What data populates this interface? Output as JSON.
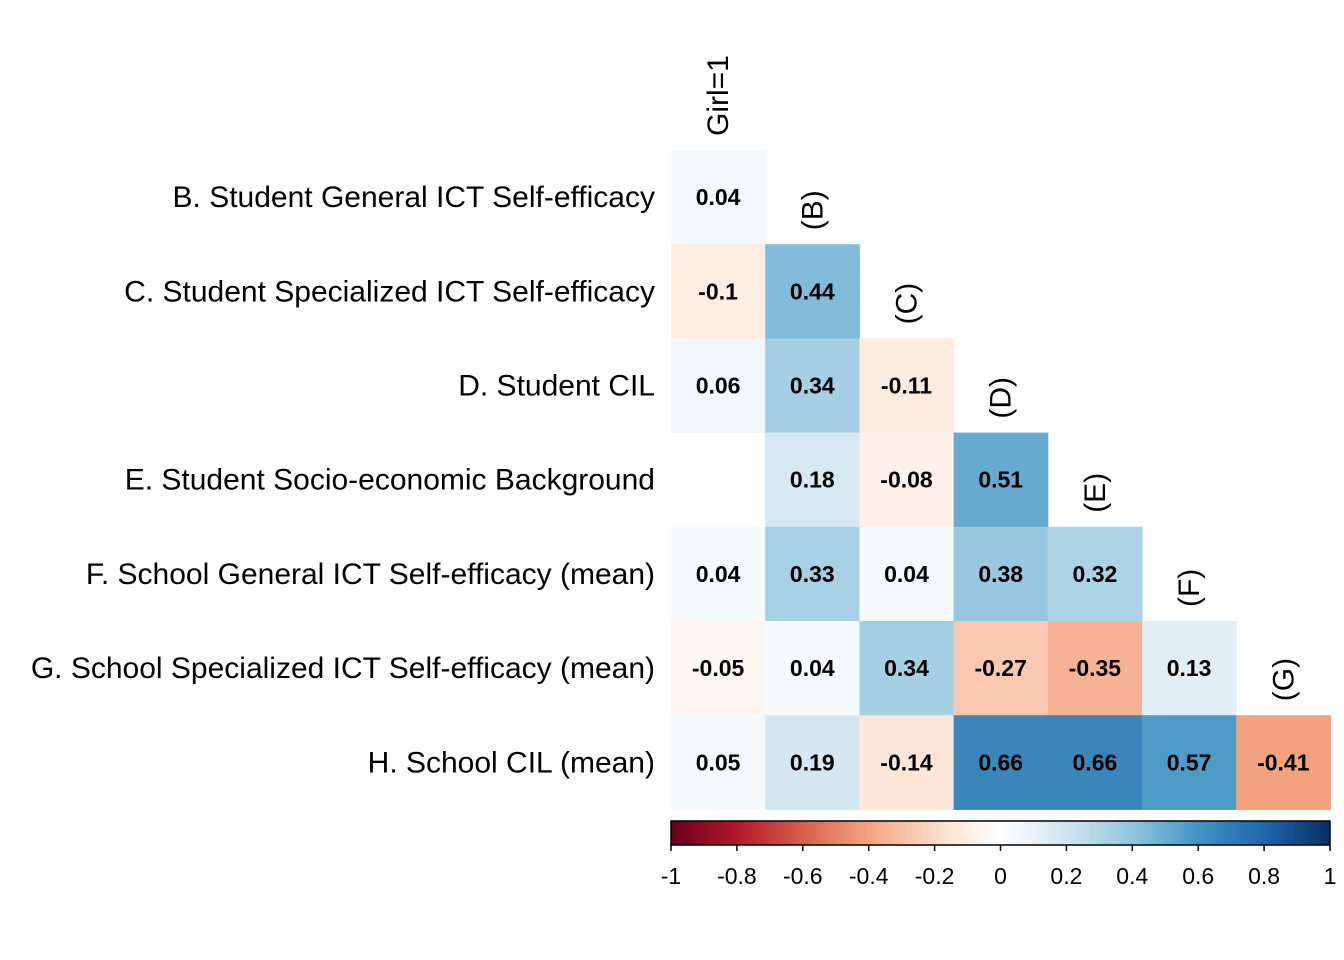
{
  "chart_data": {
    "type": "heatmap",
    "layout": "lower-triangle correlation matrix",
    "row_labels": [
      "B. Student General ICT Self-efficacy",
      "C. Student Specialized ICT Self-efficacy",
      "D. Student CIL",
      "E. Student Socio-economic Background",
      "F. School General ICT Self-efficacy (mean)",
      "G. School Specialized ICT Self-efficacy (mean)",
      "H. School CIL (mean)"
    ],
    "col_labels": [
      "Girl=1",
      "(B)",
      "(C)",
      "(D)",
      "(E)",
      "(F)",
      "(G)"
    ],
    "values": [
      [
        0.04
      ],
      [
        -0.1,
        0.44
      ],
      [
        0.06,
        0.34,
        -0.11
      ],
      [
        null,
        0.18,
        -0.08,
        0.51
      ],
      [
        0.04,
        0.33,
        0.04,
        0.38,
        0.32
      ],
      [
        -0.05,
        0.04,
        0.34,
        -0.27,
        -0.35,
        0.13
      ],
      [
        0.05,
        0.19,
        -0.14,
        0.66,
        0.66,
        0.57,
        -0.41
      ]
    ],
    "display_values": [
      [
        "0.04"
      ],
      [
        "-0.1",
        "0.44"
      ],
      [
        "0.06",
        "0.34",
        "-0.11"
      ],
      [
        "",
        "0.18",
        "-0.08",
        "0.51"
      ],
      [
        "0.04",
        "0.33",
        "0.04",
        "0.38",
        "0.32"
      ],
      [
        "-0.05",
        "0.04",
        "0.34",
        "-0.27",
        "-0.35",
        "0.13"
      ],
      [
        "0.05",
        "0.19",
        "-0.14",
        "0.66",
        "0.66",
        "0.57",
        "-0.41"
      ]
    ],
    "colorbar": {
      "range": [
        -1,
        1
      ],
      "ticks": [
        -1,
        -0.8,
        -0.6,
        -0.4,
        -0.2,
        0,
        0.2,
        0.4,
        0.6,
        0.8,
        1
      ],
      "tick_labels": [
        "-1",
        "-0.8",
        "-0.6",
        "-0.4",
        "-0.2",
        "0",
        "0.2",
        "0.4",
        "0.6",
        "0.8",
        "1"
      ],
      "palette": "RdBu",
      "stops": [
        "#67001F",
        "#B2182B",
        "#D6604D",
        "#F4A582",
        "#FDDBC7",
        "#FFFFFF",
        "#D1E5F0",
        "#92C5DE",
        "#4393C3",
        "#2166AC",
        "#053061"
      ],
      "placement": "bottom"
    },
    "grid": false
  }
}
